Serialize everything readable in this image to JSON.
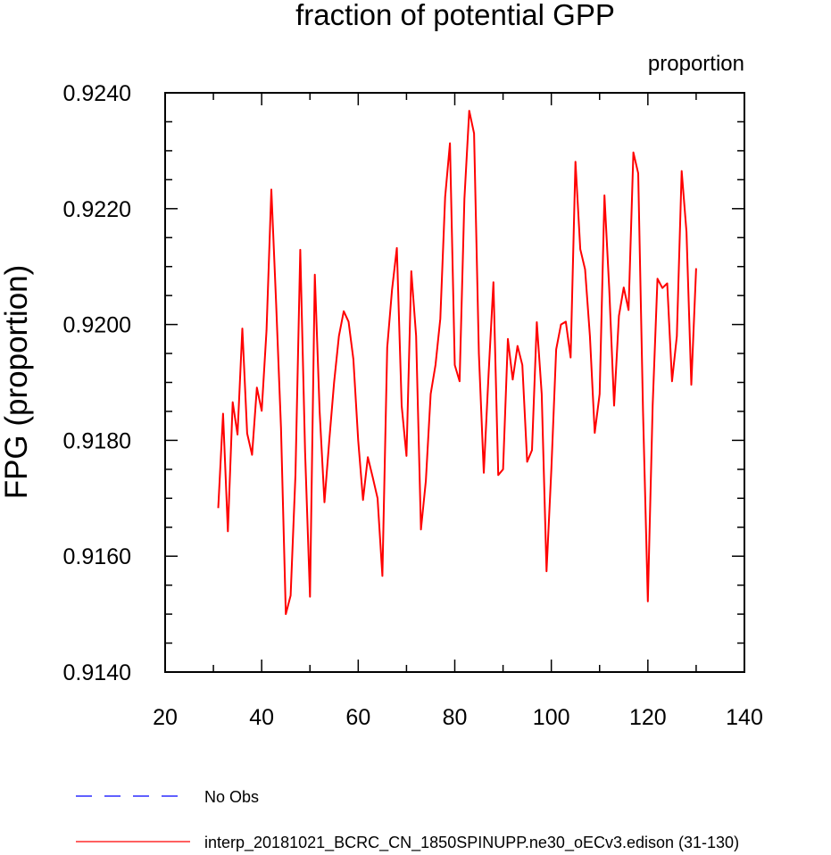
{
  "chart_data": {
    "type": "line",
    "title": "fraction of potential GPP",
    "units_label": "proportion",
    "xlabel": "",
    "ylabel": "FPG  (proportion)",
    "xlim": [
      20,
      140
    ],
    "ylim": [
      0.914,
      0.924
    ],
    "x_ticks": [
      20,
      40,
      60,
      80,
      100,
      120,
      140
    ],
    "x_tick_labels": [
      "20",
      "40",
      "60",
      "80",
      "100",
      "120",
      "140"
    ],
    "y_ticks": [
      0.914,
      0.916,
      0.918,
      0.92,
      0.922,
      0.924
    ],
    "y_tick_labels": [
      "0.9140",
      "0.9160",
      "0.9180",
      "0.9200",
      "0.9220",
      "0.9240"
    ],
    "grid": false,
    "series": [
      {
        "name": "interp_20181021_BCRC_CN_1850SPINUPP.ne30_oECv3.edison (31-130)",
        "color": "#ff0000",
        "dash": "solid",
        "x": [
          31,
          32,
          33,
          34,
          35,
          36,
          37,
          38,
          39,
          40,
          41,
          42,
          43,
          44,
          45,
          46,
          47,
          48,
          49,
          50,
          51,
          52,
          53,
          54,
          55,
          56,
          57,
          58,
          59,
          60,
          61,
          62,
          63,
          64,
          65,
          66,
          67,
          68,
          69,
          70,
          71,
          72,
          73,
          74,
          75,
          76,
          77,
          78,
          79,
          80,
          81,
          82,
          83,
          84,
          85,
          86,
          87,
          88,
          89,
          90,
          91,
          92,
          93,
          94,
          95,
          96,
          97,
          98,
          99,
          100,
          101,
          102,
          103,
          104,
          105,
          106,
          107,
          108,
          109,
          110,
          111,
          112,
          113,
          114,
          115,
          116,
          117,
          118,
          119,
          120,
          121,
          122,
          123,
          124,
          125,
          126,
          127,
          128,
          129,
          130
        ],
        "values": [
          0.91683,
          0.91846,
          0.91643,
          0.91866,
          0.9181,
          0.91993,
          0.91812,
          0.91775,
          0.91891,
          0.91851,
          0.9199,
          0.92233,
          0.92035,
          0.91822,
          0.915,
          0.91532,
          0.9174,
          0.92129,
          0.9178,
          0.9153,
          0.92086,
          0.9185,
          0.91693,
          0.918,
          0.919,
          0.9198,
          0.92023,
          0.92005,
          0.9194,
          0.918,
          0.91697,
          0.91771,
          0.91736,
          0.917,
          0.91566,
          0.9196,
          0.9206,
          0.92132,
          0.9186,
          0.91773,
          0.92092,
          0.9198,
          0.91646,
          0.9173,
          0.9188,
          0.9193,
          0.9201,
          0.9222,
          0.92313,
          0.9193,
          0.91902,
          0.92217,
          0.92369,
          0.9233,
          0.9195,
          0.91744,
          0.91915,
          0.92073,
          0.9174,
          0.9175,
          0.91975,
          0.91905,
          0.91963,
          0.9193,
          0.91763,
          0.91783,
          0.92004,
          0.9188,
          0.91574,
          0.9175,
          0.91957,
          0.92,
          0.92005,
          0.91943,
          0.92281,
          0.9213,
          0.92095,
          0.9198,
          0.91813,
          0.9188,
          0.92223,
          0.9206,
          0.9186,
          0.92015,
          0.92064,
          0.92025,
          0.92297,
          0.92261,
          0.9185,
          0.91522,
          0.9186,
          0.92079,
          0.92063,
          0.92071,
          0.91902,
          0.9198,
          0.92265,
          0.9216,
          0.91896,
          0.92097
        ]
      }
    ],
    "legend": {
      "position": "bottom-left",
      "entries": [
        {
          "label": "No Obs",
          "color": "#0000ff",
          "dash": "dashed"
        },
        {
          "label": "interp_20181021_BCRC_CN_1850SPINUPP.ne30_oECv3.edison (31-130)",
          "color": "#ff0000",
          "dash": "solid"
        }
      ]
    }
  }
}
